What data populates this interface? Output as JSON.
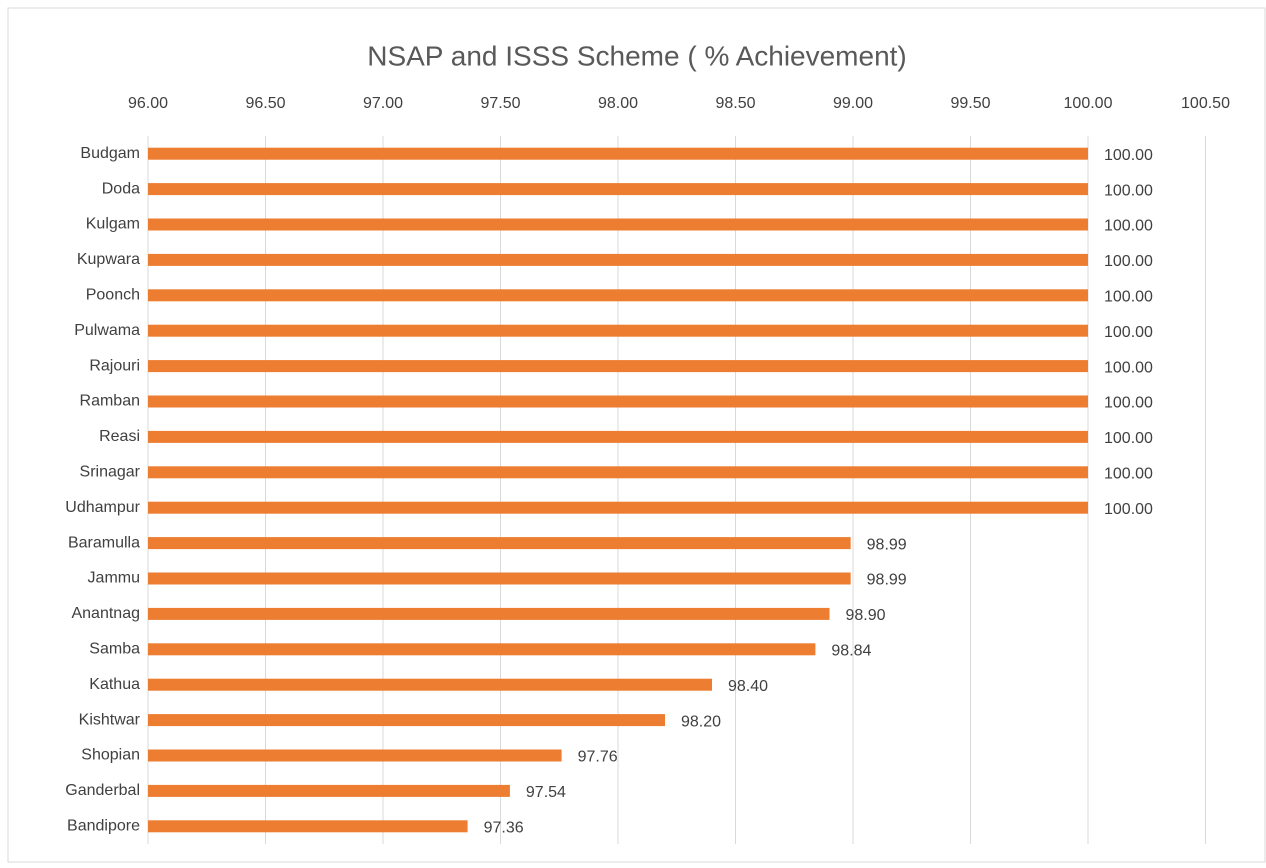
{
  "chart_data": {
    "type": "bar",
    "title": "NSAP and ISSS Scheme ( % Achievement)",
    "categories": [
      "Budgam",
      "Doda",
      "Kulgam",
      "Kupwara",
      "Poonch",
      "Pulwama",
      "Rajouri",
      "Ramban",
      "Reasi",
      "Srinagar",
      "Udhampur",
      "Baramulla",
      "Jammu",
      "Anantnag",
      "Samba",
      "Kathua",
      "Kishtwar",
      "Shopian",
      "Ganderbal",
      "Bandipore"
    ],
    "values": [
      100,
      100,
      100,
      100,
      100,
      100,
      100,
      100,
      100,
      100,
      100,
      98.99,
      98.99,
      98.9,
      98.84,
      98.4,
      98.2,
      97.76,
      97.54,
      97.36
    ],
    "value_labels": [
      "100.00",
      "100.00",
      "100.00",
      "100.00",
      "100.00",
      "100.00",
      "100.00",
      "100.00",
      "100.00",
      "100.00",
      "100.00",
      "98.99",
      "98.99",
      "98.90",
      "98.84",
      "98.40",
      "98.20",
      "97.76",
      "97.54",
      "97.36"
    ],
    "color": "#ed7d31",
    "xlim": [
      96,
      100.5
    ],
    "xticks": [
      {
        "value": 96,
        "label": "96.00"
      },
      {
        "value": 96.5,
        "label": "96.50"
      },
      {
        "value": 97,
        "label": "97.00"
      },
      {
        "value": 97.5,
        "label": "97.50"
      },
      {
        "value": 98,
        "label": "98.00"
      },
      {
        "value": 98.5,
        "label": "98.50"
      },
      {
        "value": 99,
        "label": "99.00"
      },
      {
        "value": 99.5,
        "label": "99.50"
      },
      {
        "value": 100,
        "label": "100.00"
      },
      {
        "value": 100.5,
        "label": "100.50"
      }
    ],
    "grid": true
  }
}
